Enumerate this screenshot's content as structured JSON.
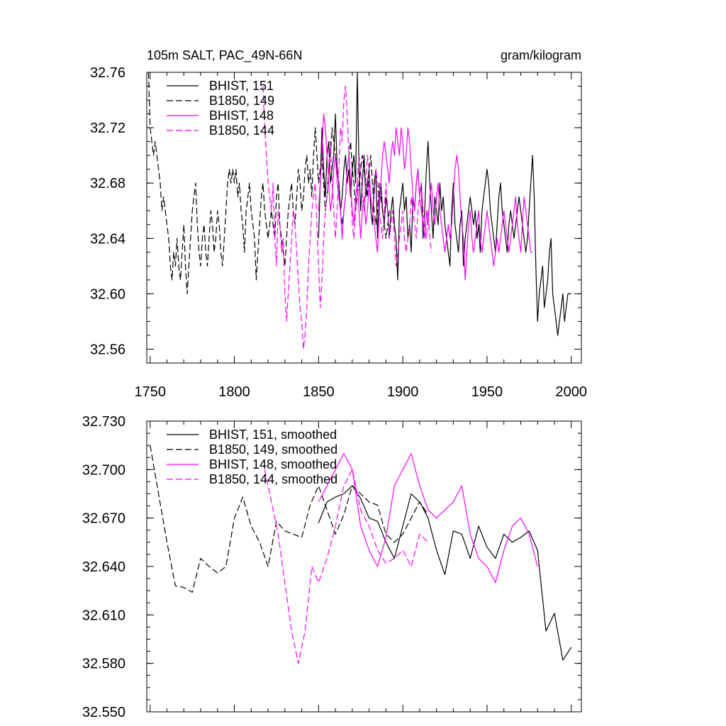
{
  "colors": {
    "black": "#000000",
    "magenta": "#ff00ff"
  },
  "chart_data": [
    {
      "type": "line",
      "title": "105m SALT, PAC_49N-66N",
      "units": "gram/kilogram",
      "xlim": [
        1748,
        2006
      ],
      "ylim": [
        32.55,
        32.76
      ],
      "xticks": [
        1750,
        1800,
        1850,
        1900,
        1950,
        2000
      ],
      "xtick_labels": [
        "1750",
        "1800",
        "1850",
        "1900",
        "1950",
        "2000"
      ],
      "yticks": [
        32.56,
        32.6,
        32.64,
        32.68,
        32.72,
        32.76
      ],
      "ytick_labels": [
        "32.56",
        "32.60",
        "32.64",
        "32.68",
        "32.72",
        "32.76"
      ],
      "legend": "top-left",
      "series": [
        {
          "name": "BHIST, 151",
          "color": "#000000",
          "dash": "solid",
          "x_start": 1850,
          "values": [
            32.64,
            32.68,
            32.72,
            32.69,
            32.67,
            32.7,
            32.71,
            32.68,
            32.69,
            32.7,
            32.73,
            32.69,
            32.68,
            32.66,
            32.67,
            32.69,
            32.7,
            32.68,
            32.69,
            32.67,
            32.69,
            32.7,
            32.68,
            32.76,
            32.69,
            32.66,
            32.68,
            32.7,
            32.67,
            32.68,
            32.69,
            32.66,
            32.65,
            32.68,
            32.69,
            32.64,
            32.67,
            32.68,
            32.66,
            32.65,
            32.67,
            32.66,
            32.64,
            32.66,
            32.67,
            32.65,
            32.64,
            32.61,
            32.66,
            32.67,
            32.68,
            32.66,
            32.67,
            32.64,
            32.65,
            32.63,
            32.67,
            32.66,
            32.68,
            32.69,
            32.67,
            32.68,
            32.64,
            32.66,
            32.69,
            32.71,
            32.68,
            32.66,
            32.64,
            32.67,
            32.66,
            32.65,
            32.68,
            32.66,
            32.67,
            32.65,
            32.64,
            32.63,
            32.62,
            32.66,
            32.68,
            32.65,
            32.64,
            32.63,
            32.65,
            32.66,
            32.62,
            32.64,
            32.65,
            32.66,
            32.67,
            32.66,
            32.65,
            32.66,
            32.64,
            32.65,
            32.63,
            32.66,
            32.67,
            32.68,
            32.69,
            32.68,
            32.66,
            32.65,
            32.64,
            32.63,
            32.65,
            32.67,
            32.68,
            32.66,
            32.65,
            32.64,
            32.63,
            32.65,
            32.66,
            32.65,
            32.64,
            32.65,
            32.66,
            32.67,
            32.66,
            32.65,
            32.64,
            32.63,
            32.64,
            32.66,
            32.68,
            32.7,
            32.67,
            32.62,
            32.58,
            32.6,
            32.61,
            32.62,
            32.59,
            32.6,
            32.61,
            32.63,
            32.64,
            32.6,
            32.59,
            32.58,
            32.57,
            32.58,
            32.59,
            32.6,
            32.58,
            32.59,
            32.6,
            32.6,
            32.6
          ]
        },
        {
          "name": "B1850, 149",
          "color": "#000000",
          "dash": "dashed",
          "x_start": 1749,
          "values": [
            32.76,
            32.72,
            32.71,
            32.7,
            32.71,
            32.7,
            32.69,
            32.68,
            32.66,
            32.67,
            32.66,
            32.65,
            32.64,
            32.62,
            32.61,
            32.63,
            32.62,
            32.64,
            32.62,
            32.61,
            32.63,
            32.65,
            32.62,
            32.6,
            32.62,
            32.64,
            32.66,
            32.67,
            32.68,
            32.65,
            32.63,
            32.62,
            32.64,
            32.65,
            32.63,
            32.62,
            32.64,
            32.66,
            32.65,
            32.63,
            32.64,
            32.66,
            32.65,
            32.63,
            32.62,
            32.64,
            32.66,
            32.68,
            32.69,
            32.68,
            32.69,
            32.68,
            32.69,
            32.67,
            32.68,
            32.66,
            32.65,
            32.63,
            32.66,
            32.67,
            32.68,
            32.66,
            32.65,
            32.64,
            32.61,
            32.63,
            32.65,
            32.67,
            32.68,
            32.66,
            32.65,
            32.64,
            32.65,
            32.66,
            32.65,
            32.64,
            32.67,
            32.68,
            32.65,
            32.64,
            32.63,
            32.62,
            32.64,
            32.66,
            32.67,
            32.68,
            32.66,
            32.65,
            32.67,
            32.69,
            32.68,
            32.66,
            32.67,
            32.69,
            32.7,
            32.68,
            32.69,
            32.67,
            32.7,
            32.72,
            32.7,
            32.68,
            32.69,
            32.7,
            32.68,
            32.66,
            32.67,
            32.69,
            32.7,
            32.72,
            32.71,
            32.7,
            32.69,
            32.68,
            32.66,
            32.65,
            32.66,
            32.67,
            32.69,
            32.7,
            32.71,
            32.69,
            32.68,
            32.66,
            32.67,
            32.68,
            32.69,
            32.7,
            32.69,
            32.68,
            32.67,
            32.69,
            32.7,
            32.68,
            32.66,
            32.65,
            32.66,
            32.68,
            32.67,
            32.66,
            32.65,
            32.64,
            32.65,
            32.66
          ]
        },
        {
          "name": "BHIST, 148",
          "color": "#ff00ff",
          "dash": "solid",
          "x_start": 1850,
          "values": [
            32.66,
            32.68,
            32.7,
            32.73,
            32.72,
            32.7,
            32.68,
            32.66,
            32.67,
            32.69,
            32.7,
            32.68,
            32.67,
            32.66,
            32.64,
            32.66,
            32.67,
            32.69,
            32.7,
            32.68,
            32.66,
            32.65,
            32.67,
            32.68,
            32.66,
            32.64,
            32.66,
            32.67,
            32.65,
            32.66,
            32.68,
            32.67,
            32.66,
            32.65,
            32.64,
            32.63,
            32.66,
            32.68,
            32.7,
            32.71,
            32.7,
            32.69,
            32.68,
            32.7,
            32.71,
            32.7,
            32.72,
            32.71,
            32.7,
            32.72,
            32.71,
            32.69,
            32.7,
            32.72,
            32.71,
            32.69,
            32.67,
            32.66,
            32.68,
            32.69,
            32.67,
            32.66,
            32.65,
            32.64,
            32.66,
            32.65,
            32.67,
            32.68,
            32.66,
            32.65,
            32.67,
            32.68,
            32.66,
            32.65,
            32.64,
            32.63,
            32.64,
            32.65,
            32.64,
            32.65,
            32.67,
            32.69,
            32.7,
            32.69,
            32.67,
            32.65,
            32.64,
            32.61,
            32.63,
            32.65,
            32.66,
            32.64,
            32.63,
            32.64,
            32.65,
            32.66,
            32.64,
            32.63,
            32.64,
            32.65,
            32.66,
            32.65,
            32.64,
            32.63,
            32.62,
            32.63,
            32.64,
            32.63,
            32.64,
            32.65,
            32.66,
            32.65,
            32.64,
            32.63,
            32.64,
            32.65,
            32.66,
            32.67,
            32.65,
            32.64,
            32.63,
            32.65,
            32.67,
            32.66,
            32.65,
            32.64,
            32.63,
            32.63
          ]
        },
        {
          "name": "B1850, 144",
          "color": "#ff00ff",
          "dash": "dashed",
          "x_start": 1817,
          "values": [
            32.75,
            32.72,
            32.7,
            32.68,
            32.67,
            32.66,
            32.68,
            32.64,
            32.62,
            32.66,
            32.65,
            32.63,
            32.64,
            32.6,
            32.58,
            32.6,
            32.62,
            32.64,
            32.66,
            32.65,
            32.63,
            32.61,
            32.59,
            32.58,
            32.56,
            32.57,
            32.59,
            32.62,
            32.64,
            32.66,
            32.67,
            32.68,
            32.65,
            32.62,
            32.59,
            32.61,
            32.64,
            32.66,
            32.67,
            32.69,
            32.71,
            32.68,
            32.66,
            32.64,
            32.66,
            32.69,
            32.72,
            32.71,
            32.74,
            32.75,
            32.73,
            32.7,
            32.68,
            32.65,
            32.64,
            32.66,
            32.68,
            32.7,
            32.69,
            32.67,
            32.66,
            32.68,
            32.7,
            32.69,
            32.67,
            32.66,
            32.67,
            32.69,
            32.68,
            32.66,
            32.65,
            32.64,
            32.66,
            32.68,
            32.66,
            32.64,
            32.65,
            32.66,
            32.64,
            32.62,
            32.63,
            32.64,
            32.65,
            32.66,
            32.64,
            32.63,
            32.64,
            32.65,
            32.67,
            32.66,
            32.65,
            32.64,
            32.66,
            32.67,
            32.68,
            32.66,
            32.65,
            32.64,
            32.66,
            32.64,
            32.63
          ]
        }
      ]
    },
    {
      "type": "line",
      "title": "",
      "xlim": [
        1748,
        2006
      ],
      "ylim": [
        32.55,
        32.73
      ],
      "yticks": [
        32.55,
        32.58,
        32.61,
        32.64,
        32.67,
        32.7,
        32.73
      ],
      "ytick_labels": [
        "32.550",
        "32.580",
        "32.610",
        "32.640",
        "32.670",
        "32.700",
        "32.730"
      ],
      "legend": "top-left",
      "series": [
        {
          "name": "BHIST, 151, smoothed",
          "color": "#000000",
          "dash": "solid",
          "x": [
            1850,
            1855,
            1860,
            1865,
            1870,
            1875,
            1880,
            1885,
            1890,
            1895,
            1900,
            1905,
            1910,
            1915,
            1920,
            1925,
            1930,
            1935,
            1940,
            1945,
            1950,
            1955,
            1960,
            1965,
            1970,
            1975,
            1980,
            1985,
            1990,
            1995,
            2000
          ],
          "y": [
            32.667,
            32.68,
            32.683,
            32.685,
            32.69,
            32.682,
            32.67,
            32.668,
            32.655,
            32.645,
            32.665,
            32.685,
            32.68,
            32.67,
            32.65,
            32.635,
            32.662,
            32.66,
            32.645,
            32.665,
            32.652,
            32.645,
            32.66,
            32.655,
            32.658,
            32.662,
            32.65,
            32.6,
            32.611,
            32.582,
            32.59
          ]
        },
        {
          "name": "B1850, 149, smoothed",
          "color": "#000000",
          "dash": "dashed",
          "x": [
            1750,
            1755,
            1760,
            1765,
            1770,
            1775,
            1780,
            1785,
            1790,
            1795,
            1800,
            1805,
            1810,
            1815,
            1820,
            1825,
            1830,
            1835,
            1840,
            1845,
            1850,
            1855,
            1860,
            1865,
            1870,
            1875,
            1880,
            1885,
            1890,
            1895,
            1900,
            1905,
            1910,
            1915
          ],
          "y": [
            32.715,
            32.685,
            32.655,
            32.628,
            32.627,
            32.624,
            32.645,
            32.64,
            32.636,
            32.64,
            32.67,
            32.683,
            32.665,
            32.655,
            32.64,
            32.668,
            32.662,
            32.66,
            32.658,
            32.678,
            32.69,
            32.675,
            32.66,
            32.672,
            32.69,
            32.685,
            32.68,
            32.678,
            32.66,
            32.655,
            32.66,
            32.67,
            32.68,
            32.672
          ]
        },
        {
          "name": "BHIST, 148, smoothed",
          "color": "#ff00ff",
          "dash": "solid",
          "x": [
            1850,
            1855,
            1860,
            1865,
            1870,
            1875,
            1880,
            1885,
            1890,
            1895,
            1900,
            1905,
            1910,
            1915,
            1920,
            1925,
            1930,
            1935,
            1940,
            1945,
            1950,
            1955,
            1960,
            1965,
            1970,
            1975,
            1980
          ],
          "y": [
            32.68,
            32.69,
            32.7,
            32.71,
            32.7,
            32.665,
            32.65,
            32.64,
            32.658,
            32.69,
            32.7,
            32.71,
            32.69,
            32.675,
            32.67,
            32.675,
            32.68,
            32.69,
            32.66,
            32.645,
            32.64,
            32.63,
            32.65,
            32.665,
            32.67,
            32.66,
            32.64
          ]
        },
        {
          "name": "B1850, 144, smoothed",
          "color": "#ff00ff",
          "dash": "dashed",
          "x": [
            1818,
            1822,
            1826,
            1830,
            1834,
            1838,
            1842,
            1846,
            1850,
            1855,
            1860,
            1865,
            1870,
            1875,
            1880,
            1885,
            1890,
            1895,
            1900,
            1905,
            1910,
            1915
          ],
          "y": [
            32.7,
            32.68,
            32.66,
            32.63,
            32.6,
            32.58,
            32.6,
            32.64,
            32.63,
            32.645,
            32.665,
            32.69,
            32.7,
            32.675,
            32.665,
            32.65,
            32.642,
            32.645,
            32.65,
            32.64,
            32.66,
            32.655
          ]
        }
      ]
    }
  ]
}
